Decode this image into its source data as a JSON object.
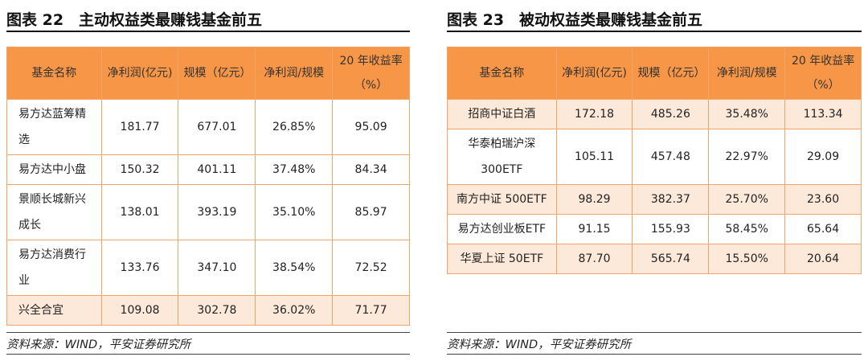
{
  "left": {
    "title": "图表 22　主动权益类最赚钱基金前五",
    "headers": [
      "基金名称",
      "净利润(亿元)",
      "规模（亿元）",
      "净利润/规模",
      "20 年收益率（%）"
    ],
    "rows": [
      {
        "name": "易方达蓝筹精选",
        "profit": "181.77",
        "size": "677.01",
        "ratio": "26.85%",
        "ret": "95.09"
      },
      {
        "name": "易方达中小盘",
        "profit": "150.32",
        "size": "401.11",
        "ratio": "37.48%",
        "ret": "84.34"
      },
      {
        "name": "景顺长城新兴成长",
        "profit": "138.01",
        "size": "393.19",
        "ratio": "35.10%",
        "ret": "85.97"
      },
      {
        "name": "易方达消费行业",
        "profit": "133.76",
        "size": "347.10",
        "ratio": "38.54%",
        "ret": "72.52"
      },
      {
        "name": "兴全合宜",
        "profit": "109.08",
        "size": "302.78",
        "ratio": "36.02%",
        "ret": "71.77"
      }
    ],
    "source": "资料来源：WIND，平安证券研究所"
  },
  "right": {
    "title": "图表 23　被动权益类最赚钱基金前五",
    "headers": [
      "基金名称",
      "净利润(亿元)",
      "规模（亿元）",
      "净利润/规模",
      "20 年收益率（%）"
    ],
    "rows": [
      {
        "name": "招商中证白酒",
        "profit": "172.18",
        "size": "485.26",
        "ratio": "35.48%",
        "ret": "113.34"
      },
      {
        "name": "华泰柏瑞沪深300ETF",
        "profit": "105.11",
        "size": "457.48",
        "ratio": "22.97%",
        "ret": "29.09"
      },
      {
        "name": "南方中证 500ETF",
        "profit": "98.29",
        "size": "382.37",
        "ratio": "25.70%",
        "ret": "23.60"
      },
      {
        "name": "易方达创业板ETF",
        "profit": "91.15",
        "size": "155.93",
        "ratio": "58.45%",
        "ret": "65.64"
      },
      {
        "name": "华夏上证 50ETF",
        "profit": "87.70",
        "size": "565.74",
        "ratio": "15.50%",
        "ret": "20.64"
      }
    ],
    "source": "资料来源：WIND，平安证券研究所"
  }
}
